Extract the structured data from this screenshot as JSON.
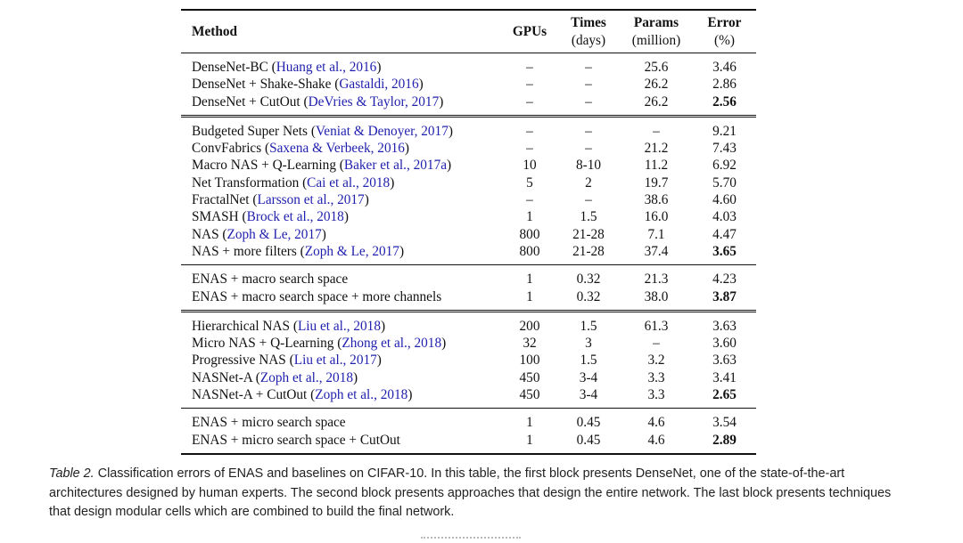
{
  "table": {
    "headers": {
      "method": "Method",
      "gpus": "GPUs",
      "times": "Times",
      "times_unit": "(days)",
      "params": "Params",
      "params_unit": "(million)",
      "error": "Error",
      "error_unit": "(%)"
    },
    "blocks": [
      {
        "rule": "single",
        "rows": [
          {
            "name": "DenseNet-BC",
            "cite": "Huang et al., 2016",
            "gpus": "–",
            "times": "–",
            "params": "25.6",
            "error": "3.46",
            "bold": false
          },
          {
            "name": "DenseNet + Shake-Shake",
            "cite": "Gastaldi, 2016",
            "gpus": "–",
            "times": "–",
            "params": "26.2",
            "error": "2.86",
            "bold": false
          },
          {
            "name": "DenseNet + CutOut",
            "cite": "DeVries & Taylor, 2017",
            "gpus": "–",
            "times": "–",
            "params": "26.2",
            "error": "2.56",
            "bold": true
          }
        ]
      },
      {
        "rule": "double",
        "rows": [
          {
            "name": "Budgeted Super Nets",
            "cite": "Veniat & Denoyer, 2017",
            "gpus": "–",
            "times": "–",
            "params": "–",
            "error": "9.21",
            "bold": false
          },
          {
            "name": "ConvFabrics",
            "cite": "Saxena & Verbeek, 2016",
            "gpus": "–",
            "times": "–",
            "params": "21.2",
            "error": "7.43",
            "bold": false
          },
          {
            "name": "Macro NAS + Q-Learning",
            "cite": "Baker et al., 2017a",
            "gpus": "10",
            "times": "8-10",
            "params": "11.2",
            "error": "6.92",
            "bold": false
          },
          {
            "name": "Net Transformation",
            "cite": "Cai et al., 2018",
            "gpus": "5",
            "times": "2",
            "params": "19.7",
            "error": "5.70",
            "bold": false
          },
          {
            "name": "FractalNet",
            "cite": "Larsson et al., 2017",
            "gpus": "–",
            "times": "–",
            "params": "38.6",
            "error": "4.60",
            "bold": false
          },
          {
            "name": "SMASH",
            "cite": "Brock et al., 2018",
            "gpus": "1",
            "times": "1.5",
            "params": "16.0",
            "error": "4.03",
            "bold": false
          },
          {
            "name": "NAS",
            "cite": "Zoph & Le, 2017",
            "gpus": "800",
            "times": "21-28",
            "params": "7.1",
            "error": "4.47",
            "bold": false
          },
          {
            "name": "NAS + more filters",
            "cite": "Zoph & Le, 2017",
            "gpus": "800",
            "times": "21-28",
            "params": "37.4",
            "error": "3.65",
            "bold": true
          }
        ]
      },
      {
        "rule": "single",
        "rows": [
          {
            "name": "ENAS + macro search space",
            "cite": "",
            "gpus": "1",
            "times": "0.32",
            "params": "21.3",
            "error": "4.23",
            "bold": false
          },
          {
            "name": "ENAS + macro search space + more channels",
            "cite": "",
            "gpus": "1",
            "times": "0.32",
            "params": "38.0",
            "error": "3.87",
            "bold": true
          }
        ]
      },
      {
        "rule": "double",
        "rows": [
          {
            "name": "Hierarchical NAS",
            "cite": "Liu et al., 2018",
            "gpus": "200",
            "times": "1.5",
            "params": "61.3",
            "error": "3.63",
            "bold": false
          },
          {
            "name": "Micro NAS + Q-Learning",
            "cite": "Zhong et al., 2018",
            "gpus": "32",
            "times": "3",
            "params": "–",
            "error": "3.60",
            "bold": false
          },
          {
            "name": "Progressive NAS",
            "cite": "Liu et al., 2017",
            "gpus": "100",
            "times": "1.5",
            "params": "3.2",
            "error": "3.63",
            "bold": false
          },
          {
            "name": "NASNet-A",
            "cite": "Zoph et al., 2018",
            "gpus": "450",
            "times": "3-4",
            "params": "3.3",
            "error": "3.41",
            "bold": false
          },
          {
            "name": "NASNet-A + CutOut",
            "cite": "Zoph et al., 2018",
            "gpus": "450",
            "times": "3-4",
            "params": "3.3",
            "error": "2.65",
            "bold": true
          }
        ]
      },
      {
        "rule": "single",
        "rows": [
          {
            "name": "ENAS + micro search space",
            "cite": "",
            "gpus": "1",
            "times": "0.45",
            "params": "4.6",
            "error": "3.54",
            "bold": false
          },
          {
            "name": "ENAS + micro search space + CutOut",
            "cite": "",
            "gpus": "1",
            "times": "0.45",
            "params": "4.6",
            "error": "2.89",
            "bold": true
          }
        ]
      }
    ]
  },
  "caption": {
    "label": "Table 2.",
    "text": "Classification errors of ENAS and baselines on CIFAR-10. In this table, the first block presents DenseNet, one of the state-of-the-art architectures designed by human experts. The second block presents approaches that design the entire network. The last block presents techniques that design modular cells which are combined to build the final network."
  },
  "colors": {
    "citation": "#1f1fae",
    "text": "#111111",
    "background": "#ffffff"
  }
}
